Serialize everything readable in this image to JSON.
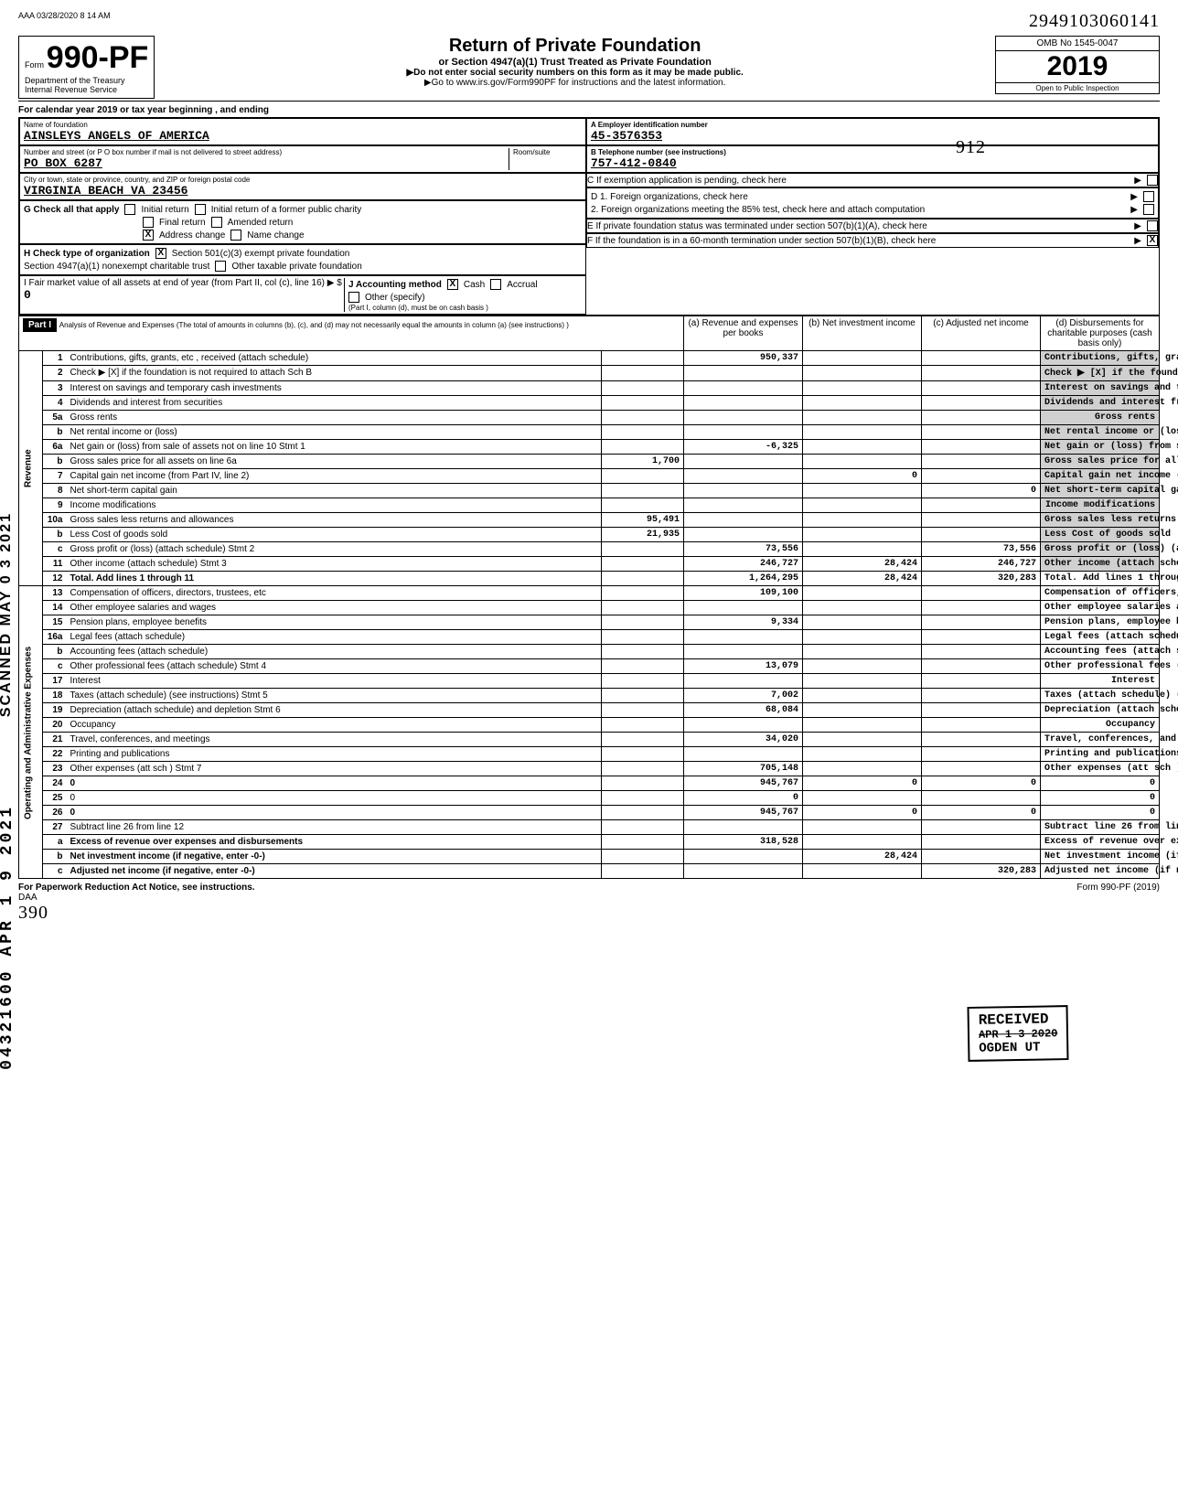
{
  "meta": {
    "top_left": "AAA 03/28/2020 8 14 AM",
    "top_right_hand": "2949103060141",
    "dln_hand": "912"
  },
  "header": {
    "form_prefix": "Form",
    "form_number": "990-PF",
    "dept": "Department of the Treasury",
    "irs": "Internal Revenue Service",
    "title": "Return of Private Foundation",
    "subtitle": "or Section 4947(a)(1) Trust Treated as Private Foundation",
    "inst1": "▶Do not enter social security numbers on this form as it may be made public.",
    "inst2": "▶Go to www.irs.gov/Form990PF for instructions and the latest information.",
    "omb": "OMB No 1545-0047",
    "year": "2019",
    "public": "Open to Public Inspection",
    "cal_year": "For calendar year 2019 or tax year beginning                          , and ending"
  },
  "identity": {
    "name_label": "Name of foundation",
    "name": "AINSLEYS ANGELS OF AMERICA",
    "addr_label": "Number and street (or P O  box number if mail is not delivered to street address)",
    "addr": "PO BOX 6287",
    "room_label": "Room/suite",
    "city_label": "City or town, state or province, country, and ZIP or foreign postal code",
    "city": "VIRGINIA BEACH           VA  23456",
    "A_label": "A    Employer identification number",
    "A_val": "45-3576353",
    "B_label": "B    Telephone number (see instructions)",
    "B_val": "757-412-0840",
    "C_label": "C    If exemption application is pending, check here",
    "D1": "D   1.  Foreign organizations, check here",
    "D2": "2.  Foreign organizations meeting the 85% test, check here and attach computation",
    "E": "E    If private foundation status was terminated under section 507(b)(1)(A), check here",
    "F": "F    If the foundation is in a 60-month termination under section 507(b)(1)(B), check here"
  },
  "checks": {
    "G_label": "G  Check all that apply",
    "g_initial": "Initial return",
    "g_initial_former": "Initial return of a former public charity",
    "g_final": "Final return",
    "g_amended": "Amended return",
    "g_address": "Address change",
    "g_name": "Name change",
    "H_label": "H  Check type of organization",
    "h_501c3": "Section 501(c)(3) exempt private foundation",
    "h_4947": "Section 4947(a)(1) nonexempt charitable trust",
    "h_other_tax": "Other taxable private foundation",
    "I_label": "I   Fair market value of all assets at end of year (from Part II, col (c), line 16) ▶  $",
    "I_val": "0",
    "J_label": "J   Accounting method",
    "j_cash": "Cash",
    "j_accrual": "Accrual",
    "j_other": "Other (specify)",
    "j_note": "(Part I, column (d), must be on cash basis )"
  },
  "part1": {
    "hdr": "Part I",
    "hdr_desc": "Analysis of Revenue and Expenses (The total of amounts in columns (b), (c), and (d) may not necessarily equal the amounts in column (a) (see instructions) )",
    "col_a": "(a) Revenue and expenses per books",
    "col_b": "(b) Net investment income",
    "col_c": "(c) Adjusted net income",
    "col_d": "(d) Disbursements for charitable purposes (cash basis only)"
  },
  "sections": {
    "revenue": "Revenue",
    "opadmin": "Operating and Administrative Expenses"
  },
  "lines": [
    {
      "n": "1",
      "d": "Contributions, gifts, grants, etc , received (attach schedule)",
      "a": "950,337"
    },
    {
      "n": "2",
      "d": "Check ▶  [X]  if the foundation is not required to attach Sch B"
    },
    {
      "n": "3",
      "d": "Interest on savings and temporary cash investments"
    },
    {
      "n": "4",
      "d": "Dividends and interest from securities"
    },
    {
      "n": "5a",
      "d": "Gross rents"
    },
    {
      "n": "b",
      "d": "Net rental income or (loss)"
    },
    {
      "n": "6a",
      "d": "Net gain or (loss) from sale of assets not on line 10   Stmt 1",
      "a": "-6,325"
    },
    {
      "n": "b",
      "d": "Gross sales price for all assets on line 6a",
      "pre": "1,700"
    },
    {
      "n": "7",
      "d": "Capital gain net income (from Part IV, line 2)",
      "b": "0"
    },
    {
      "n": "8",
      "d": "Net short-term capital gain",
      "c": "0"
    },
    {
      "n": "9",
      "d": "Income modifications"
    },
    {
      "n": "10a",
      "d": "Gross sales less returns and allowances",
      "pre": "95,491"
    },
    {
      "n": "b",
      "d": "Less Cost of goods sold",
      "pre": "21,935"
    },
    {
      "n": "c",
      "d": "Gross profit or (loss) (attach schedule)   Stmt 2",
      "a": "73,556",
      "c": "73,556"
    },
    {
      "n": "11",
      "d": "Other income (attach schedule)         Stmt 3",
      "a": "246,727",
      "b": "28,424",
      "c": "246,727"
    },
    {
      "n": "12",
      "d": "Total. Add lines 1 through 11",
      "a": "1,264,295",
      "b": "28,424",
      "c": "320,283",
      "bold": true
    },
    {
      "n": "13",
      "d": "Compensation of officers, directors, trustees, etc",
      "a": "109,100"
    },
    {
      "n": "14",
      "d": "Other employee salaries and wages"
    },
    {
      "n": "15",
      "d": "Pension plans, employee benefits",
      "a": "9,334"
    },
    {
      "n": "16a",
      "d": "Legal fees (attach schedule)"
    },
    {
      "n": "b",
      "d": "Accounting fees (attach schedule)"
    },
    {
      "n": "c",
      "d": "Other professional fees (attach schedule)    Stmt 4",
      "a": "13,079"
    },
    {
      "n": "17",
      "d": "Interest"
    },
    {
      "n": "18",
      "d": "Taxes (attach schedule) (see instructions)    Stmt 5",
      "a": "7,002"
    },
    {
      "n": "19",
      "d": "Depreciation (attach schedule) and depletion   Stmt 6",
      "a": "68,084"
    },
    {
      "n": "20",
      "d": "Occupancy"
    },
    {
      "n": "21",
      "d": "Travel, conferences, and meetings",
      "a": "34,020"
    },
    {
      "n": "22",
      "d": "Printing and publications"
    },
    {
      "n": "23",
      "d": "Other expenses (att sch )                    Stmt 7",
      "a": "705,148"
    },
    {
      "n": "24",
      "d": "0",
      "a": "945,767",
      "b": "0",
      "c": "0",
      "bold": true
    },
    {
      "n": "25",
      "d": "0",
      "a": "0"
    },
    {
      "n": "26",
      "d": "0",
      "a": "945,767",
      "b": "0",
      "c": "0",
      "bold": true
    },
    {
      "n": "27",
      "d": "Subtract line 26 from line 12"
    },
    {
      "n": "a",
      "d": "Excess of revenue over expenses and disbursements",
      "a": "318,528",
      "bold": true
    },
    {
      "n": "b",
      "d": "Net investment income (if negative, enter -0-)",
      "b": "28,424",
      "bold": true
    },
    {
      "n": "c",
      "d": "Adjusted net income (if negative, enter -0-)",
      "c": "320,283",
      "bold": true
    }
  ],
  "footer": {
    "left": "For Paperwork Reduction Act Notice, see instructions.",
    "daa": "DAA",
    "right": "Form 990-PF (2019)",
    "hand_bottom": "390"
  },
  "stamps": {
    "scanned": "SCANNED MAY 0 3 2021",
    "dln_side": "04321600 APR 1 9 2021",
    "received": "RECEIVED",
    "received_date": "APR 1 3 2020",
    "received_loc": "OGDEN UT"
  },
  "colors": {
    "text": "#000000",
    "bg": "#ffffff",
    "shade": "#d0d0d0"
  }
}
